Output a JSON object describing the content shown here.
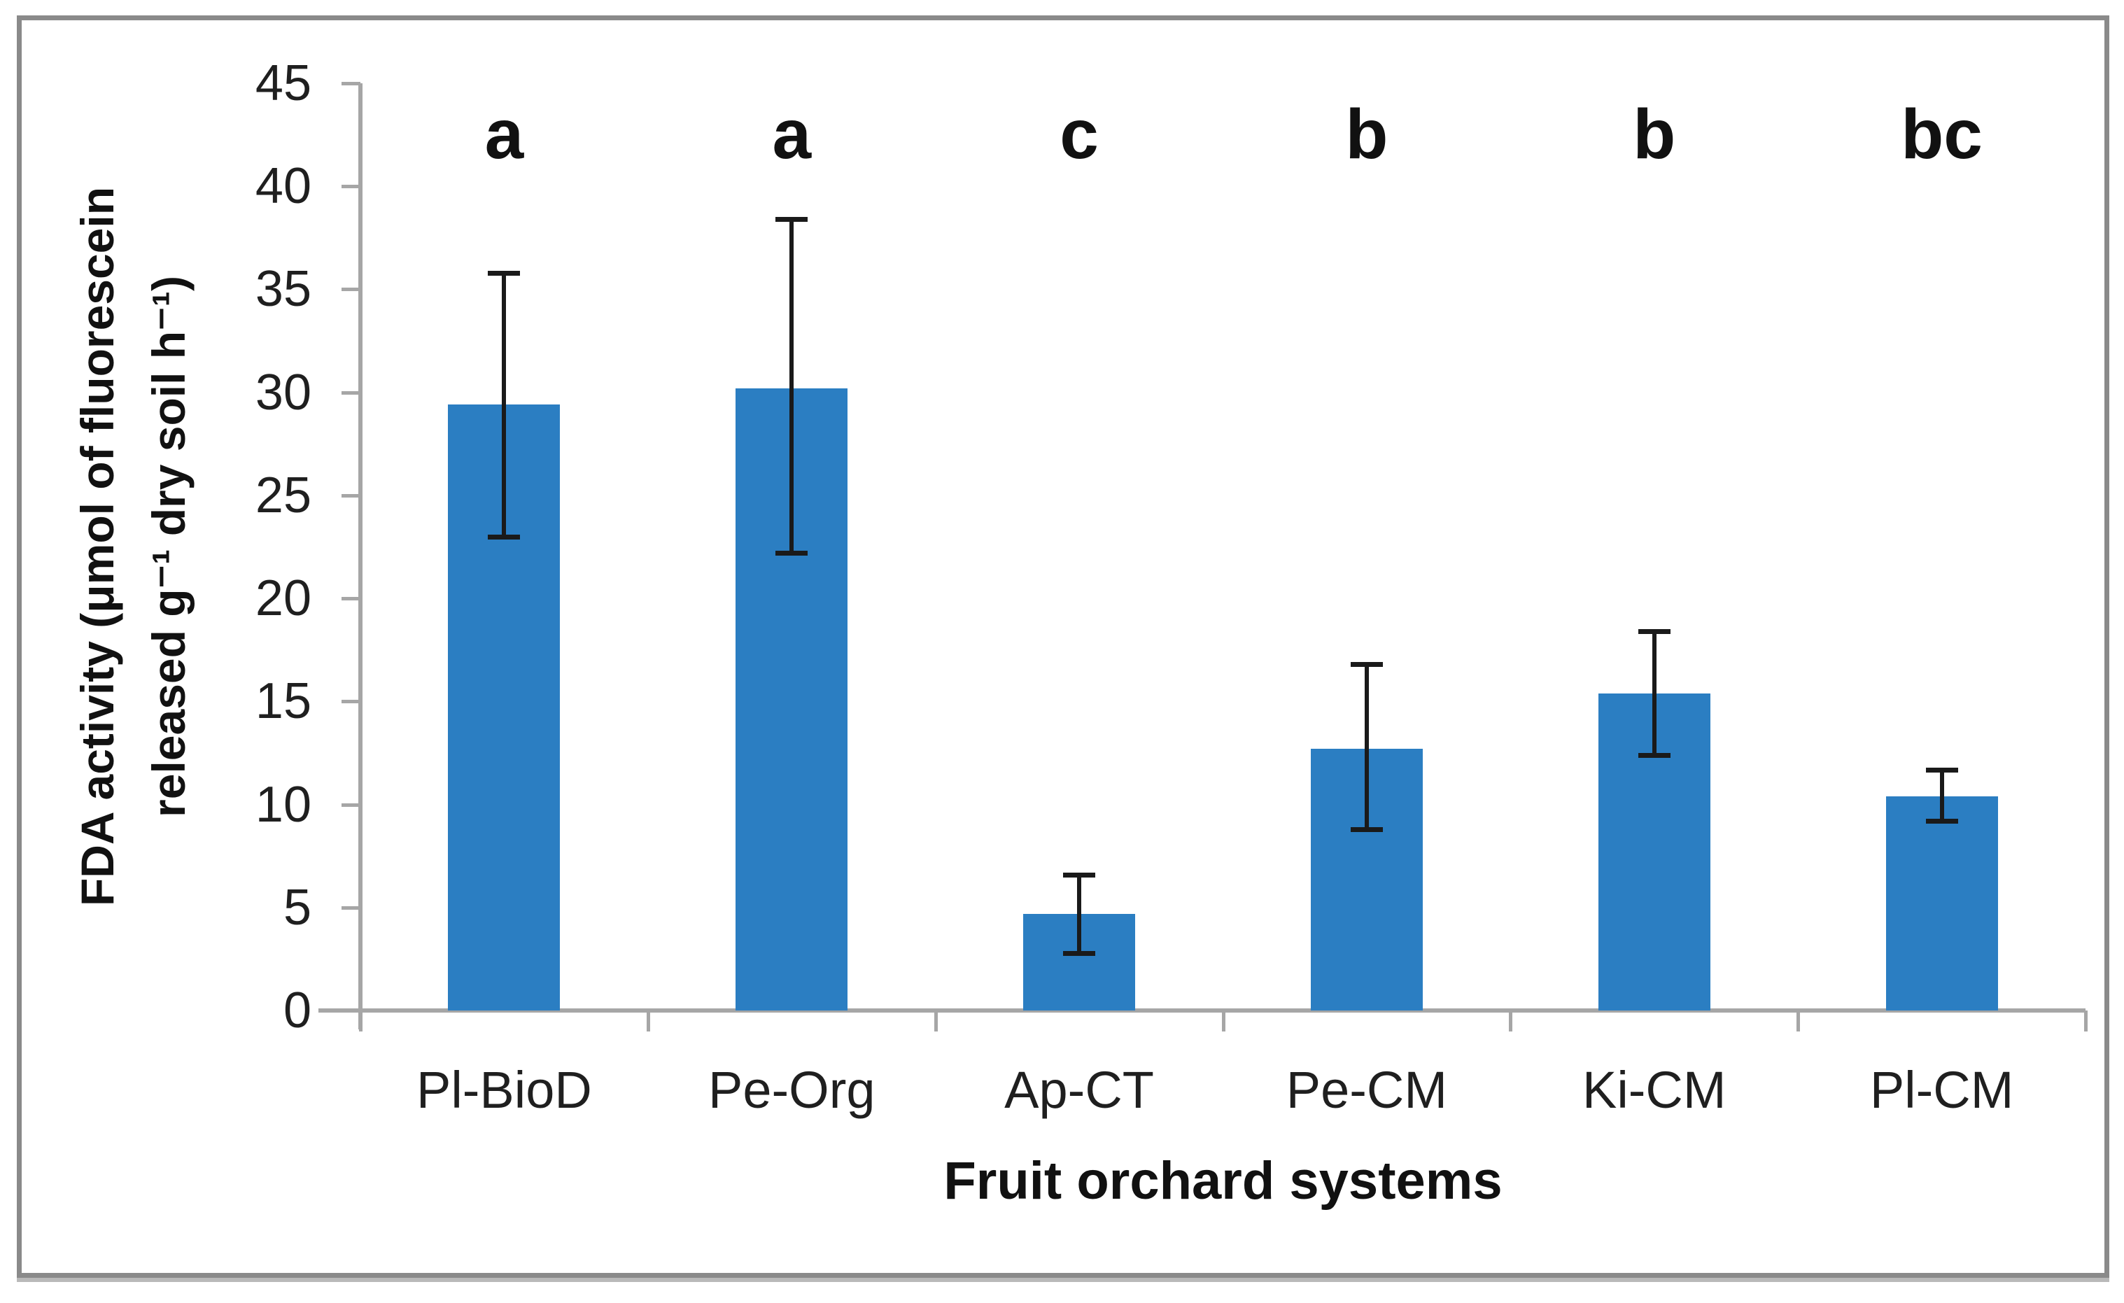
{
  "figure": {
    "background": "#ffffff",
    "frame_color": "#8a8a8a"
  },
  "chart_data": {
    "type": "bar",
    "title": "",
    "xlabel": "Fruit orchard systems",
    "ylabel_line1": "FDA activity (μmol of fluorescein",
    "ylabel_line2": "released g⁻¹ dry soil h⁻¹)",
    "categories": [
      "Pl-BioD",
      "Pe-Org",
      "Ap-CT",
      "Pe-CM",
      "Ki-CM",
      "Pl-CM"
    ],
    "values": [
      29.4,
      30.2,
      4.7,
      12.7,
      15.4,
      10.4
    ],
    "error_up": [
      6.4,
      8.2,
      1.9,
      4.1,
      3.0,
      1.3
    ],
    "error_down": [
      6.4,
      8.0,
      1.9,
      3.9,
      3.0,
      1.2
    ],
    "sig_letters": [
      "a",
      "a",
      "c",
      "b",
      "b",
      "bc"
    ],
    "y_ticks": [
      0,
      5,
      10,
      15,
      20,
      25,
      30,
      35,
      40,
      45
    ],
    "ylim": [
      0,
      45
    ],
    "bar_color": "#2b7ec2",
    "axis_color": "#a6a6a6",
    "error_bar_color": "#1a1a1a",
    "grid": false,
    "legend": null
  }
}
